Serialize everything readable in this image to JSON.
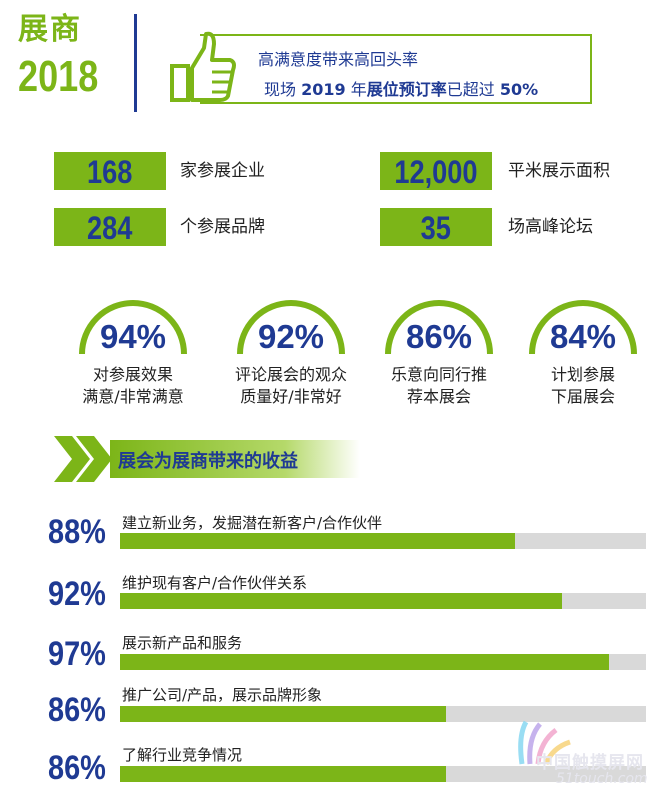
{
  "header": {
    "title": "展商",
    "year": "2018",
    "line1": "高满意度带来高回头率",
    "line2_pre": "现场",
    "line2_year": "2019",
    "line2_mid1": "年",
    "line2_bold": "展位预订率",
    "line2_mid2": "已超过",
    "line2_pct": "50%"
  },
  "stats": [
    {
      "value": "168",
      "label": "家参展企业"
    },
    {
      "value": "12,000",
      "label": "平米展示面积"
    },
    {
      "value": "284",
      "label": "个参展品牌"
    },
    {
      "value": "35",
      "label": "场高峰论坛"
    }
  ],
  "gauges": [
    {
      "value": "94%",
      "line1": "对参展效果",
      "line2": "满意/非常满意"
    },
    {
      "value": "92%",
      "line1": "评论展会的观众",
      "line2": "质量好/非常好"
    },
    {
      "value": "86%",
      "line1": "乐意向同行推",
      "line2": "荐本展会"
    },
    {
      "value": "84%",
      "line1": "计划参展",
      "line2": "下届展会"
    }
  ],
  "section_title": "展会为展商带来的收益",
  "bars": [
    {
      "pct": "88%",
      "fraction": 0.75,
      "label": "建立新业务，发掘潜在新客户/合作伙伴"
    },
    {
      "pct": "92%",
      "fraction": 0.84,
      "label": "维护现有客户/合作伙伴关系"
    },
    {
      "pct": "97%",
      "fraction": 0.93,
      "label": "展示新产品和服务"
    },
    {
      "pct": "86%",
      "fraction": 0.62,
      "label": "推广公司/产品，展示品牌形象"
    },
    {
      "pct": "86%",
      "fraction": 0.62,
      "label": "了解行业竞争情况"
    }
  ],
  "watermark": {
    "cn": "中国触摸屏网",
    "url": "51touch.com"
  },
  "colors": {
    "green": "#7cb518",
    "navy": "#1f3a93",
    "track": "#d9d9d9"
  }
}
